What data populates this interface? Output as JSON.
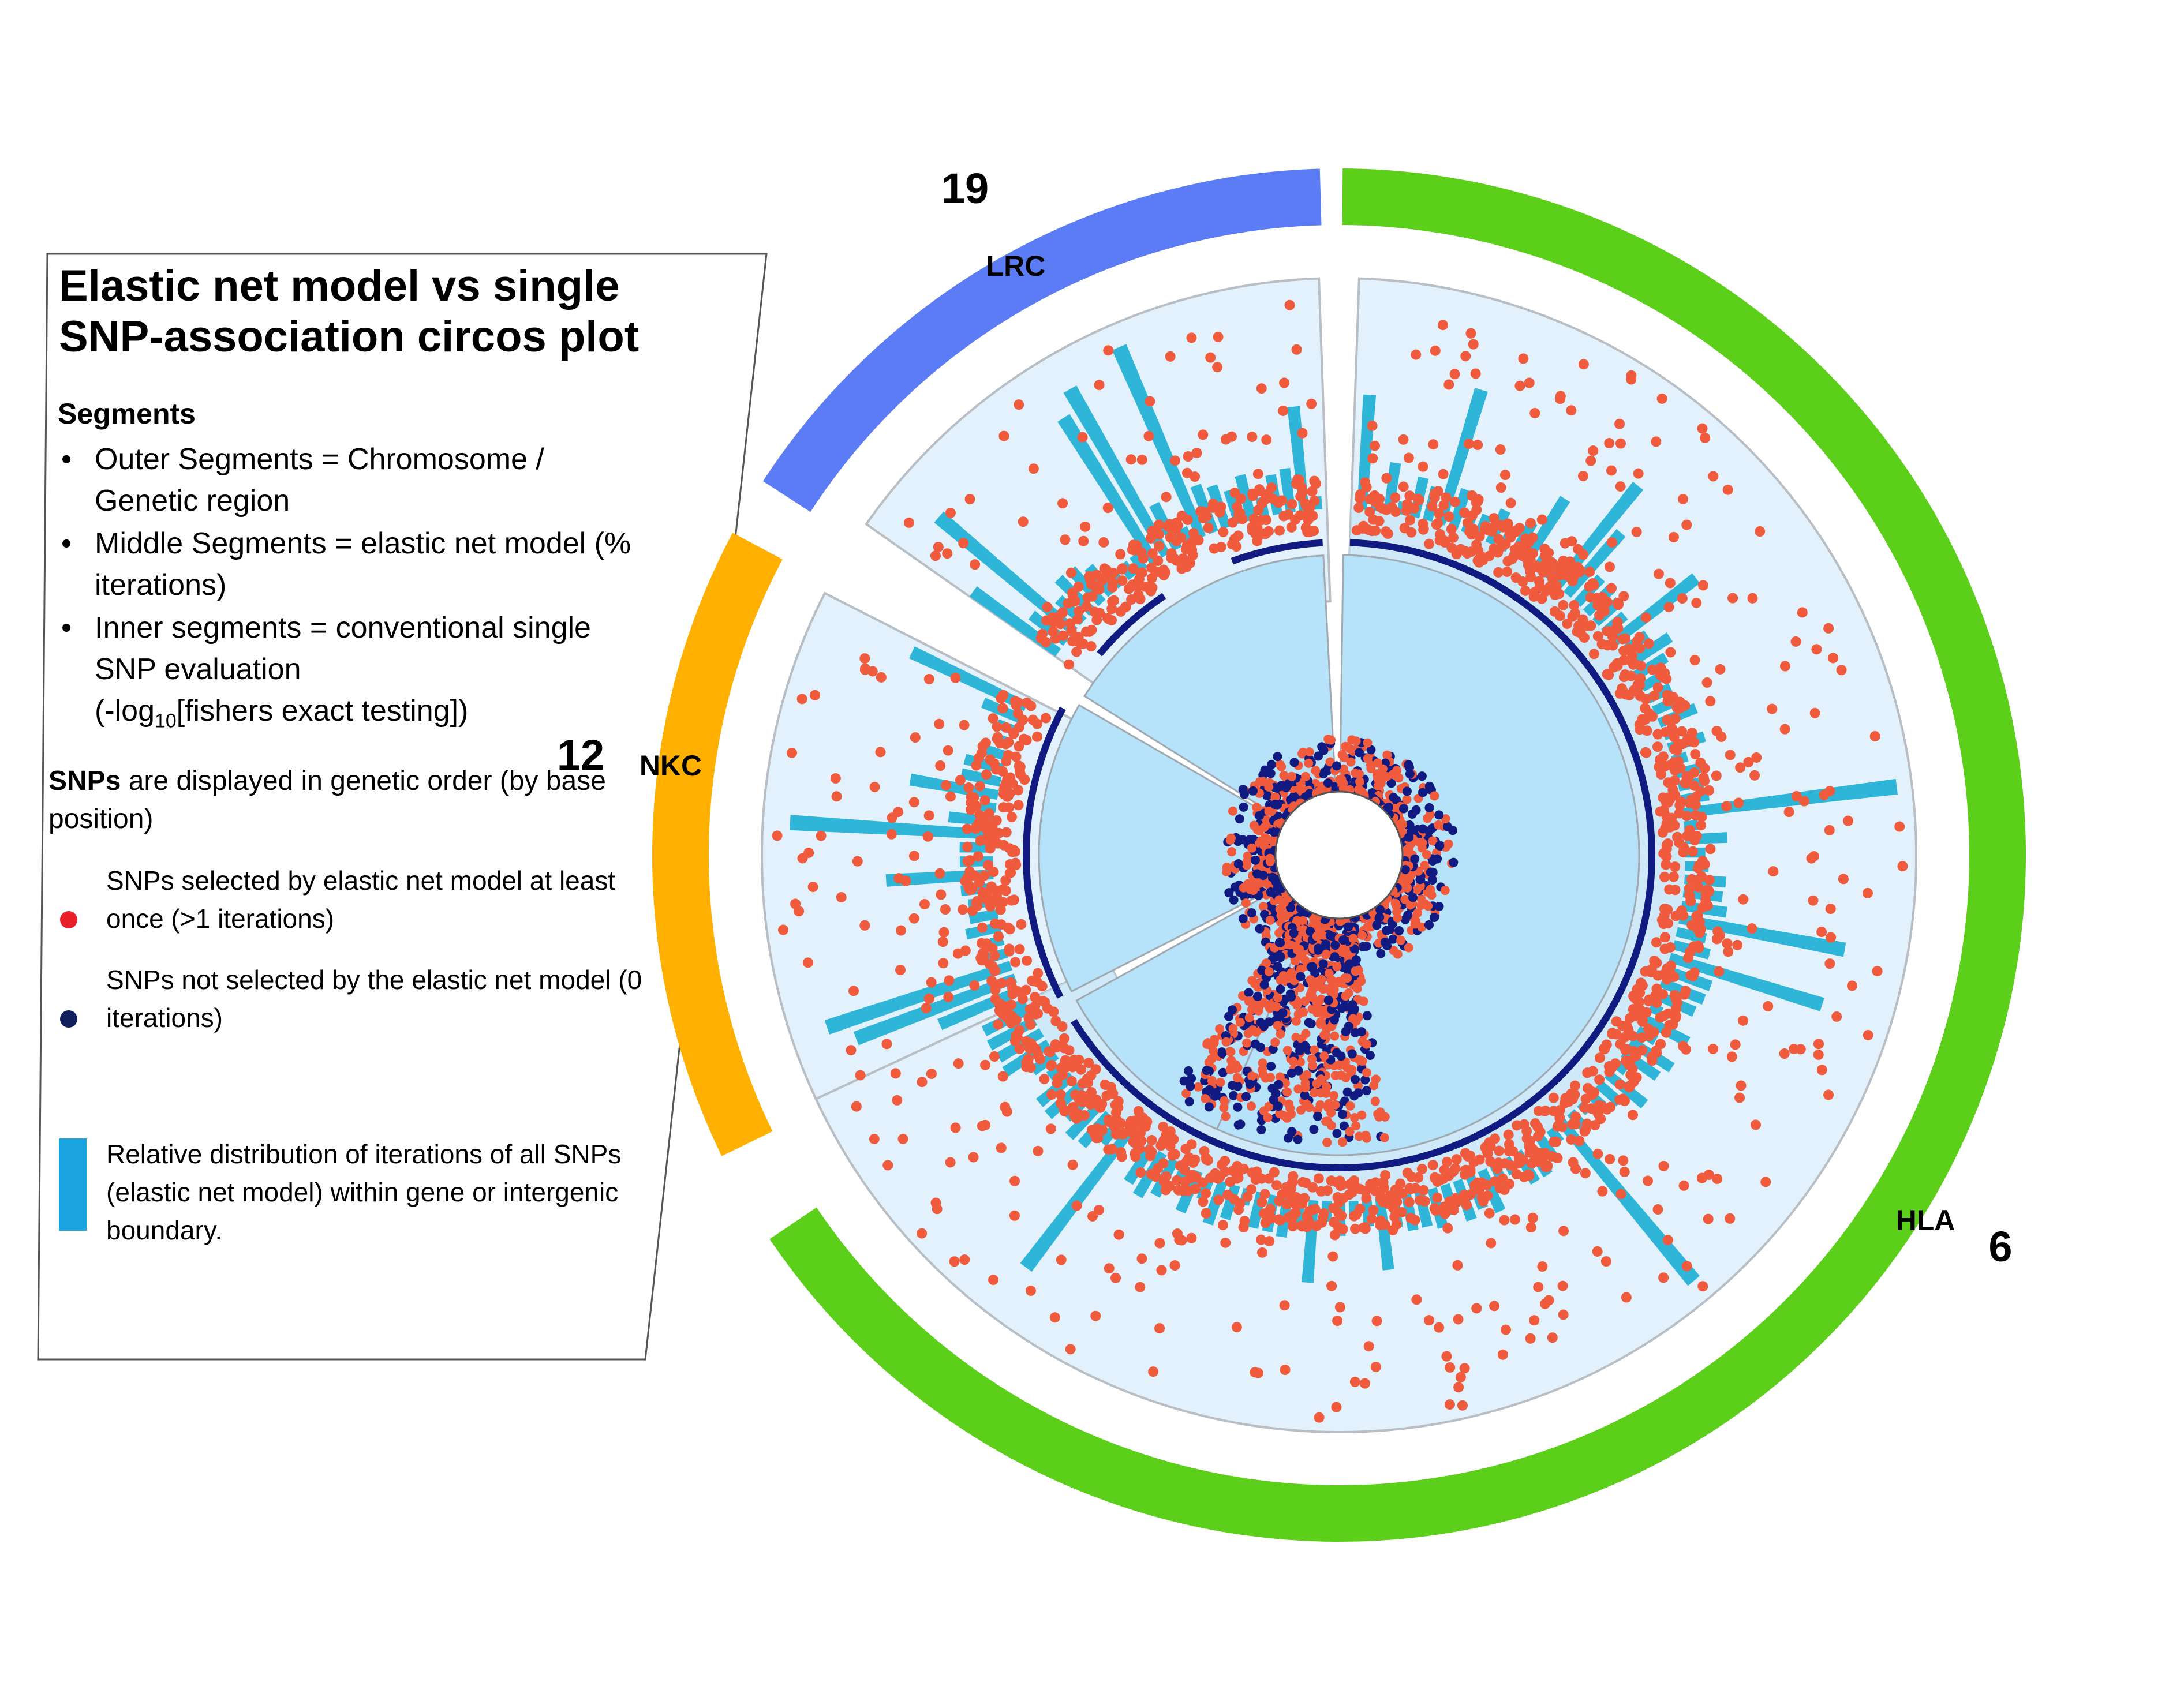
{
  "legend": {
    "title_line1": "Elastic net model vs single",
    "title_line2": "SNP-association circos plot",
    "segments_heading": "Segments",
    "segments": [
      "Outer Segments = Chromosome / Genetic region",
      "Middle Segments = elastic net model (% iterations)",
      "Inner segments = conventional single SNP evaluation"
    ],
    "inner_formula_prefix": "(-log",
    "inner_formula_sub": "10",
    "inner_formula_suffix": "[fishers exact testing])",
    "order_bold": "SNPs",
    "order_text": " are displayed in genetic order (by base position)",
    "selected_label": "SNPs selected by elastic net model at least once (>1 iterations)",
    "not_selected_label": "SNPs not selected by the elastic net model (0 iterations)",
    "bar_label": "Relative distribution of iterations of all SNPs (elastic net model) within gene or intergenic boundary."
  },
  "colors": {
    "chr6": "#5ccf1a",
    "chr12": "#ffb000",
    "chr19": "#5c7cf6",
    "panel": "#e2f1fb",
    "inner_panel": "#b6e3fa",
    "bar": "#2fb5d8",
    "selected_point": "#ef5b3c",
    "not_selected_point": "#101a80"
  },
  "chart_data": {
    "type": "circos",
    "segments": [
      {
        "chromosome": "19",
        "region": "LRC"
      },
      {
        "chromosome": "12",
        "region": "NKC"
      },
      {
        "chromosome": "6",
        "region": "HLA"
      }
    ],
    "tracks": [
      "Outer Segments = Chromosome / Genetic region",
      "Middle Segments = elastic net model (% iterations)",
      "Inner segments = conventional single SNP evaluation"
    ],
    "point_series": [
      {
        "name": "SNPs selected by elastic net model at least once",
        "iterations": ">1"
      },
      {
        "name": "SNPs not selected by the elastic net model",
        "iterations": "0"
      }
    ]
  }
}
